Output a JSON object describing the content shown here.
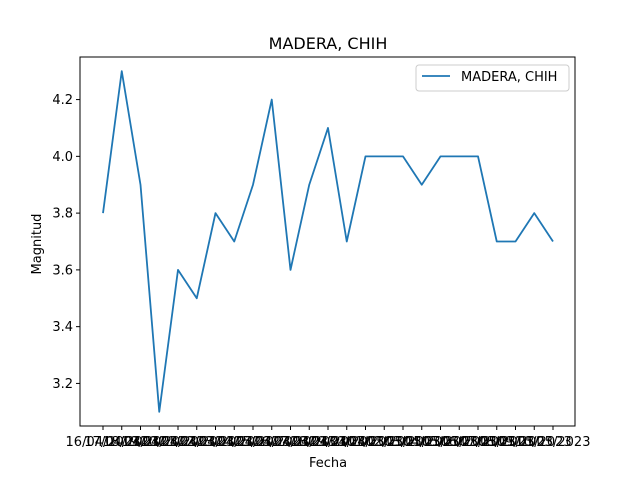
{
  "chart_data": {
    "type": "line",
    "title": "MADERA, CHIH",
    "xlabel": "Fecha",
    "ylabel": "Magnitud",
    "ylim": [
      3.05,
      4.35
    ],
    "yticks": [
      "3.2",
      "3.4",
      "3.6",
      "3.8",
      "4.0",
      "4.2"
    ],
    "x": [
      "16/04/2023",
      "17/04/2023",
      "18/04/2023",
      "19/04/2023",
      "20/04/2023",
      "21/04/2023",
      "22/04/2023",
      "23/04/2023",
      "24/04/2023",
      "25/04/2023",
      "26/04/2023",
      "27/04/2023",
      "28/04/2023",
      "29/04/2023",
      "30/04/2023",
      "01/05/2023",
      "02/05/2023",
      "03/05/2023",
      "04/05/2023",
      "05/05/2023",
      "06/05/2023",
      "07/05/2023",
      "08/05/2023",
      "09/05/2023",
      "10/05/2023"
    ],
    "series": [
      {
        "name": "MADERA, CHIH",
        "color": "#1f77b4",
        "values": [
          3.8,
          4.3,
          3.9,
          3.1,
          3.6,
          3.5,
          3.8,
          3.7,
          3.9,
          4.2,
          3.6,
          3.9,
          4.1,
          3.7,
          4.0,
          4.0,
          4.0,
          3.9,
          4.0,
          4.0,
          4.0,
          3.7,
          3.7,
          3.8,
          3.7
        ]
      }
    ],
    "legend": "top-right",
    "grid": false
  }
}
